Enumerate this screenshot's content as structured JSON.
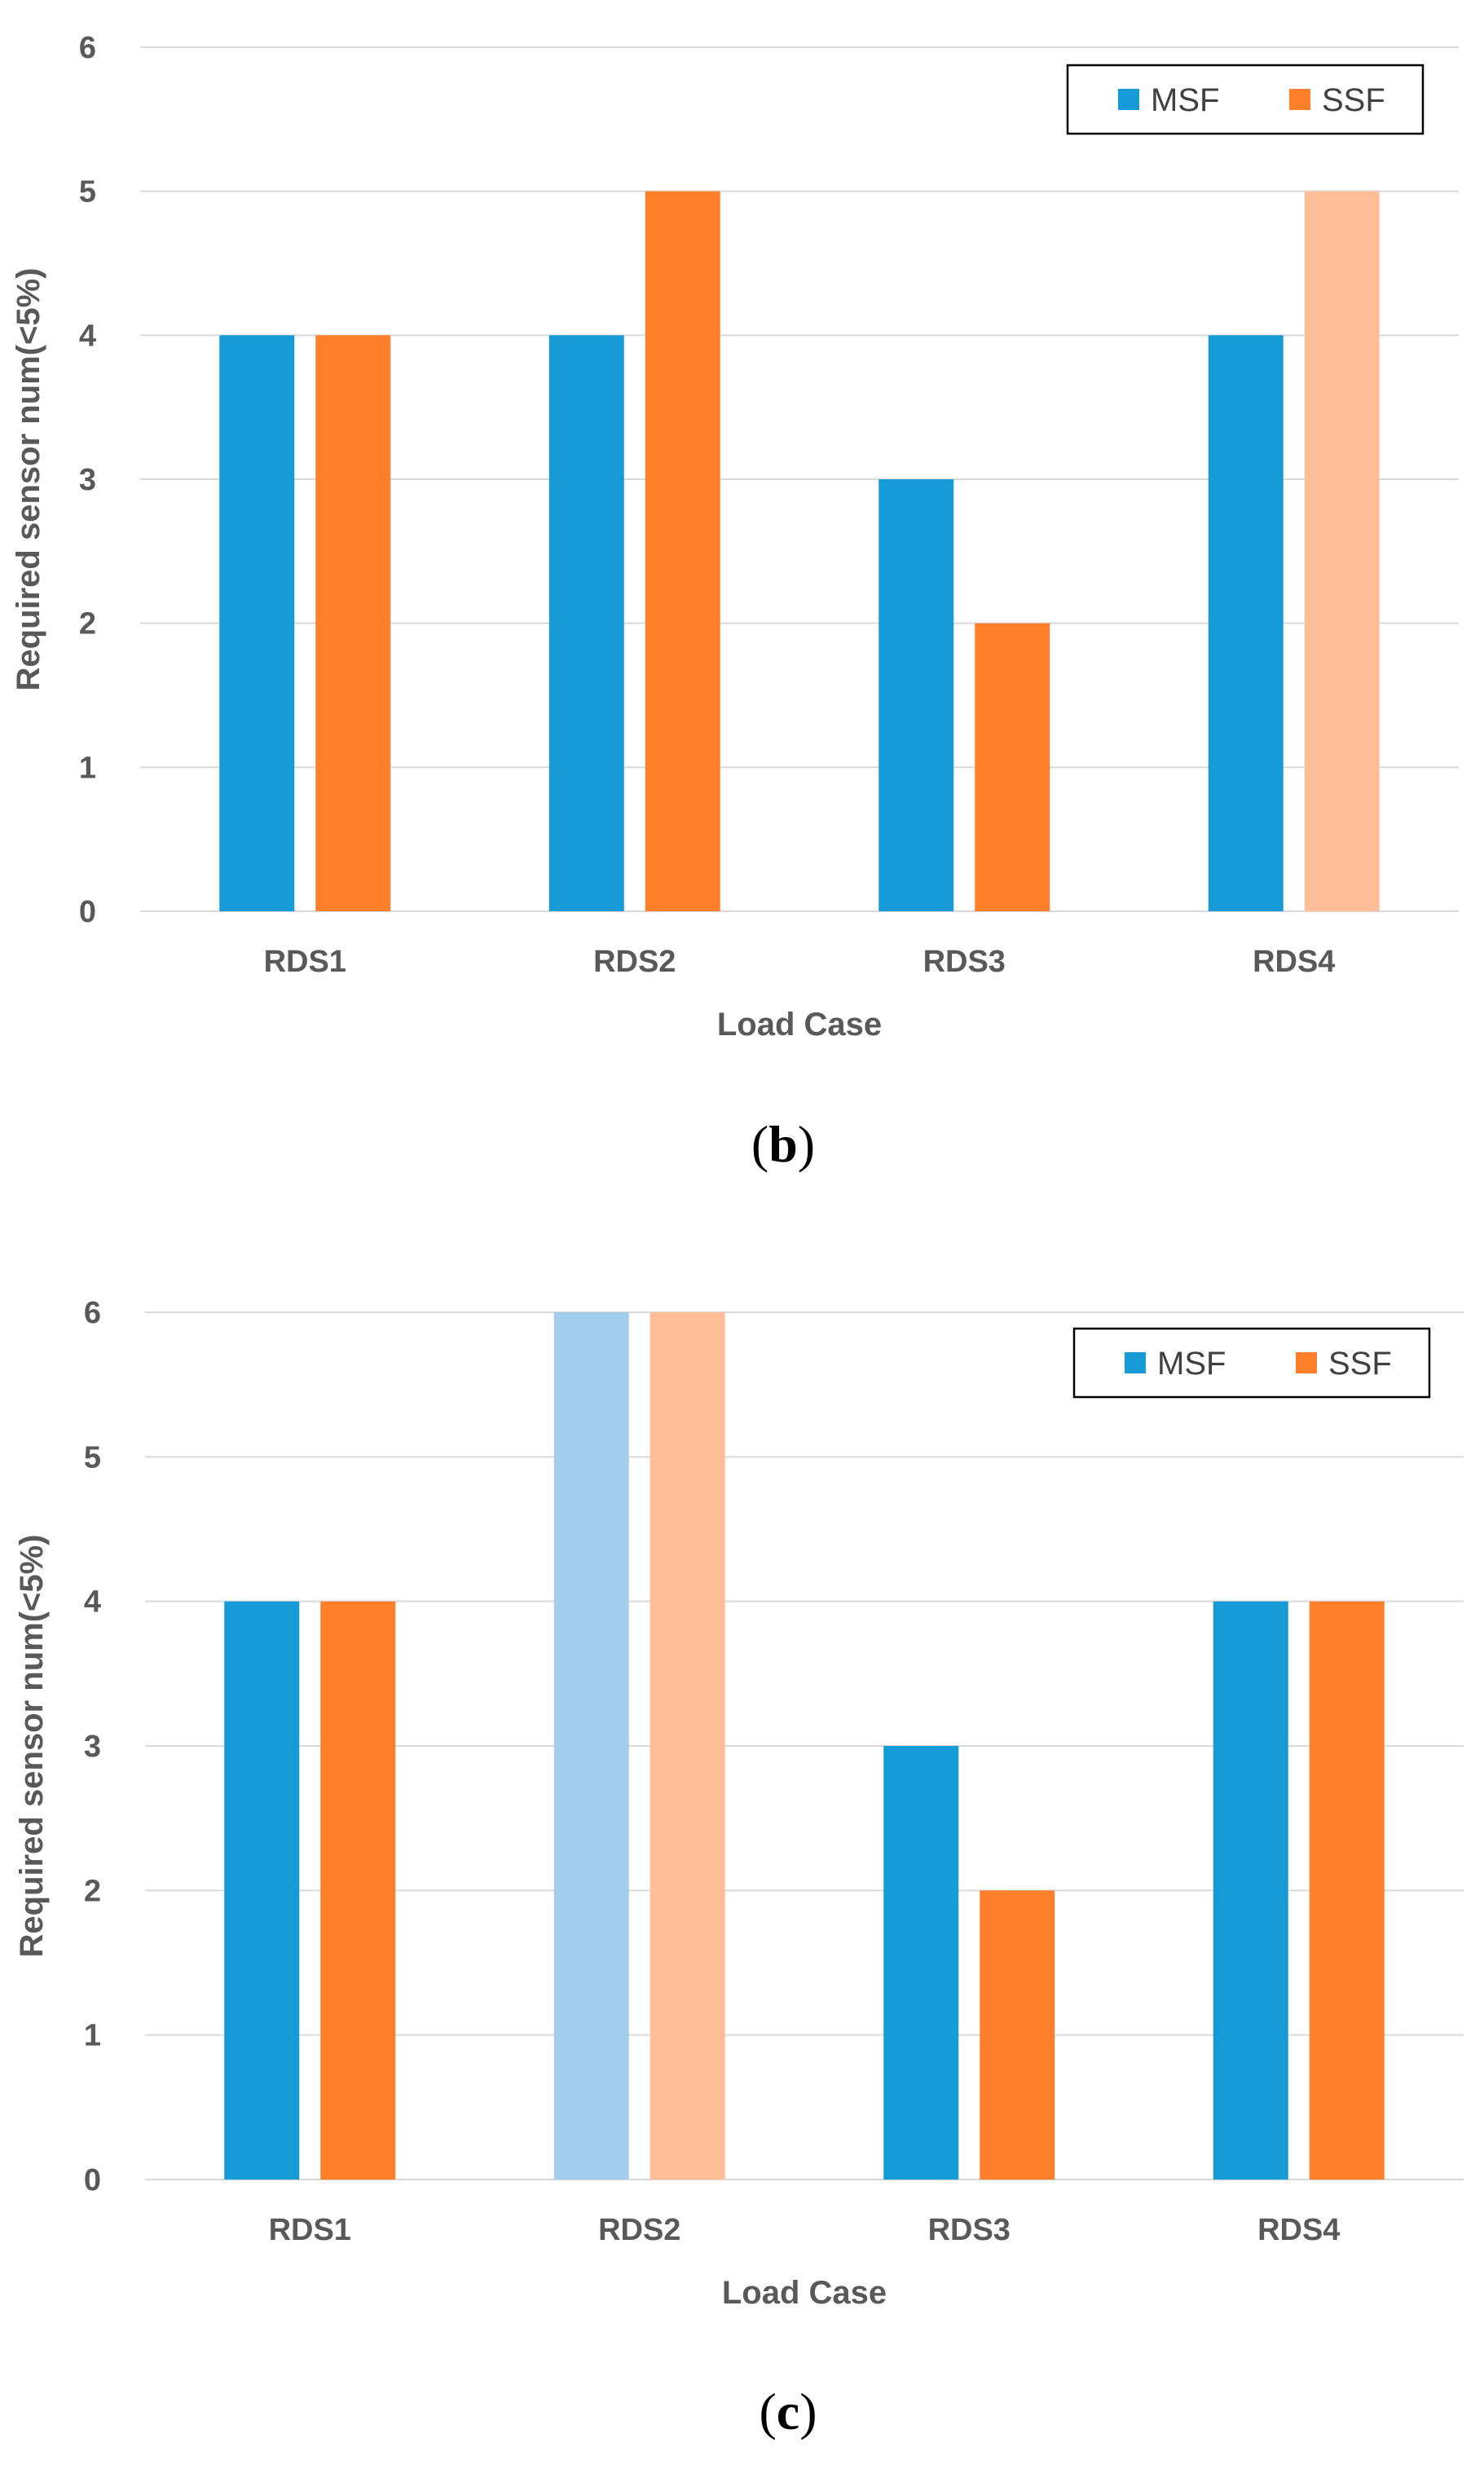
{
  "colors": {
    "msf": "#179BD7",
    "ssf": "#FF7F2A",
    "msf_light": "#A2CEEB",
    "ssf_light": "#FFBE98",
    "gridline": "#D9D9D9",
    "text": "#595959"
  },
  "chart_data": [
    {
      "type": "bar",
      "panel_label": "b",
      "categories": [
        "RDS1",
        "RDS2",
        "RDS3",
        "RDS4"
      ],
      "series": [
        {
          "name": "MSF",
          "values": [
            4,
            4,
            3,
            4
          ],
          "highlight": [
            false,
            false,
            false,
            false
          ]
        },
        {
          "name": "SSF",
          "values": [
            4,
            5,
            2,
            5
          ],
          "highlight": [
            false,
            false,
            false,
            true
          ]
        }
      ],
      "xlabel": "Load Case",
      "ylabel": "Required sensor num(<5%)",
      "ylim": [
        0,
        6
      ],
      "yticks": [
        "0",
        "1",
        "2",
        "3",
        "4",
        "5",
        "6"
      ],
      "grid": true,
      "legend": "top-right"
    },
    {
      "type": "bar",
      "panel_label": "c",
      "categories": [
        "RDS1",
        "RDS2",
        "RDS3",
        "RDS4"
      ],
      "series": [
        {
          "name": "MSF",
          "values": [
            4,
            6,
            3,
            4
          ],
          "highlight": [
            false,
            true,
            false,
            false
          ]
        },
        {
          "name": "SSF",
          "values": [
            4,
            6,
            2,
            4
          ],
          "highlight": [
            false,
            true,
            false,
            false
          ]
        }
      ],
      "xlabel": "Load Case",
      "ylabel": "Required sensor num(<5%)",
      "ylim": [
        0,
        6
      ],
      "yticks": [
        "0",
        "1",
        "2",
        "3",
        "4",
        "5",
        "6"
      ],
      "grid": true,
      "legend": "top-right"
    }
  ]
}
